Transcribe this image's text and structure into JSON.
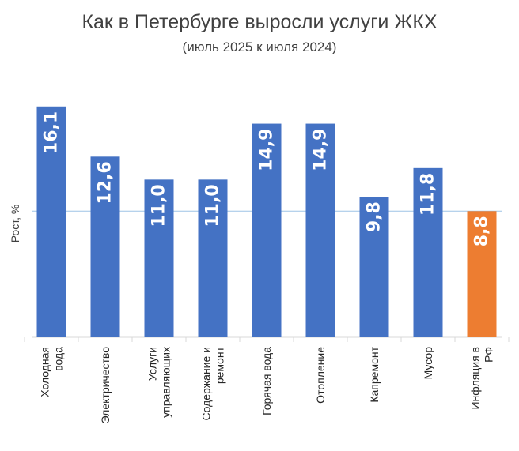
{
  "chart_data": {
    "type": "bar",
    "title": "Как в Петербурге выросли услуги ЖКХ",
    "subtitle": "(июль 2025 к июля 2024)",
    "ylabel": "Рост, %",
    "xlabel": "",
    "ylim": [
      0,
      17
    ],
    "reference_line": 8.8,
    "categories": [
      [
        "Холодная",
        "вода"
      ],
      [
        "Электричество"
      ],
      [
        "Услуги",
        "управляющих"
      ],
      [
        "Содержание и",
        "ремонт"
      ],
      [
        "Горячая вода"
      ],
      [
        "Отопление"
      ],
      [
        "Капремонт"
      ],
      [
        "Мусор"
      ],
      [
        "Инфляция в",
        "РФ"
      ]
    ],
    "values": [
      16.1,
      12.6,
      11.0,
      11.0,
      14.9,
      14.9,
      9.8,
      11.8,
      8.8
    ],
    "value_labels": [
      "16,1",
      "12,6",
      "11,0",
      "11,0",
      "14,9",
      "14,9",
      "9,8",
      "11,8",
      "8,8"
    ],
    "colors": [
      "#4472C4",
      "#4472C4",
      "#4472C4",
      "#4472C4",
      "#4472C4",
      "#4472C4",
      "#4472C4",
      "#4472C4",
      "#ED7D31"
    ],
    "reference_line_color": "#9DC3E6",
    "axis_color": "#D9D9D9"
  }
}
